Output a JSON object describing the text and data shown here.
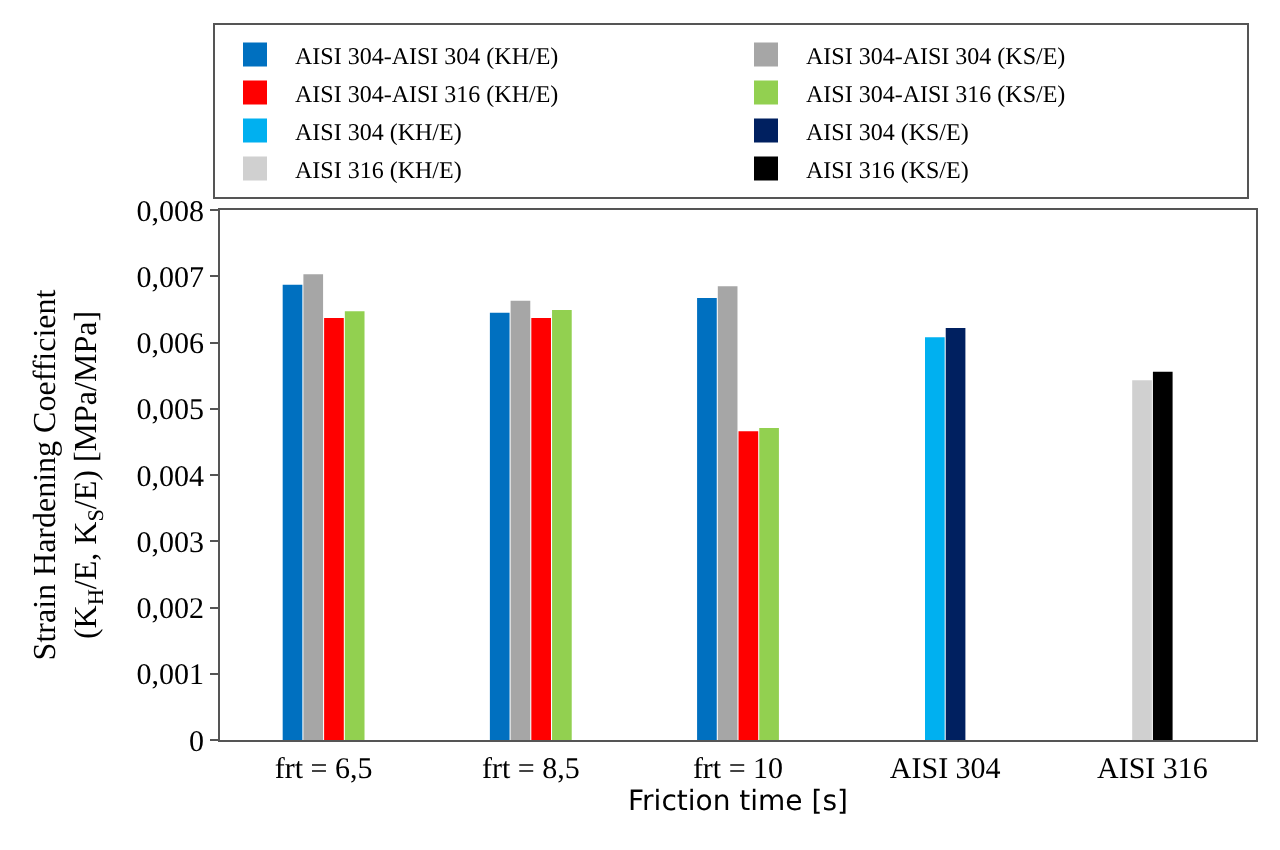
{
  "chart_data": {
    "type": "bar",
    "xlabel": "Friction time [s]",
    "ylabel": "Strain Hardening Coefficient (K$_{H}$/E, K$_{S}$/E) [MPa/MPa]",
    "categories": [
      "frt = 6,5",
      "frt = 8,5",
      "frt = 10",
      "AISI 304",
      "AISI 316"
    ],
    "series": [
      {
        "name": "AISI 304-AISI 304 (KH/E)",
        "color": "#0070c0",
        "values": [
          0.00687,
          0.00645,
          0.00667,
          null,
          null
        ]
      },
      {
        "name": "AISI 304-AISI 304 (KS/E)",
        "color": "#a6a6a6",
        "values": [
          0.00703,
          0.00663,
          0.00685,
          null,
          null
        ]
      },
      {
        "name": "AISI 304-AISI 316 (KH/E)",
        "color": "#ff0000",
        "values": [
          0.00637,
          0.00637,
          0.00466,
          null,
          null
        ]
      },
      {
        "name": "AISI 304-AISI 316 (KS/E)",
        "color": "#92d050",
        "values": [
          0.00647,
          0.00649,
          0.00471,
          null,
          null
        ]
      },
      {
        "name": "AISI 304 (KH/E)",
        "color": "#00b0f0",
        "values": [
          null,
          null,
          null,
          0.00608,
          null
        ]
      },
      {
        "name": "AISI 304 (KS/E)",
        "color": "#002060",
        "values": [
          null,
          null,
          null,
          0.00622,
          null
        ]
      },
      {
        "name": "AISI 316 (KH/E)",
        "color": "#d0d0d0",
        "values": [
          null,
          null,
          null,
          null,
          0.00543
        ]
      },
      {
        "name": "AISI 316 (KS/E)",
        "color": "#000000",
        "values": [
          null,
          null,
          null,
          null,
          0.00556
        ]
      }
    ],
    "ylim": [
      0,
      0.008
    ],
    "yticks": [
      {
        "value": 0,
        "label": "0"
      },
      {
        "value": 0.001,
        "label": "0,001"
      },
      {
        "value": 0.002,
        "label": "0,002"
      },
      {
        "value": 0.003,
        "label": "0,003"
      },
      {
        "value": 0.004,
        "label": "0,004"
      },
      {
        "value": 0.005,
        "label": "0,005"
      },
      {
        "value": 0.006,
        "label": "0,006"
      },
      {
        "value": 0.007,
        "label": "0,007"
      },
      {
        "value": 0.008,
        "label": "0,008"
      }
    ],
    "legend": "top"
  }
}
